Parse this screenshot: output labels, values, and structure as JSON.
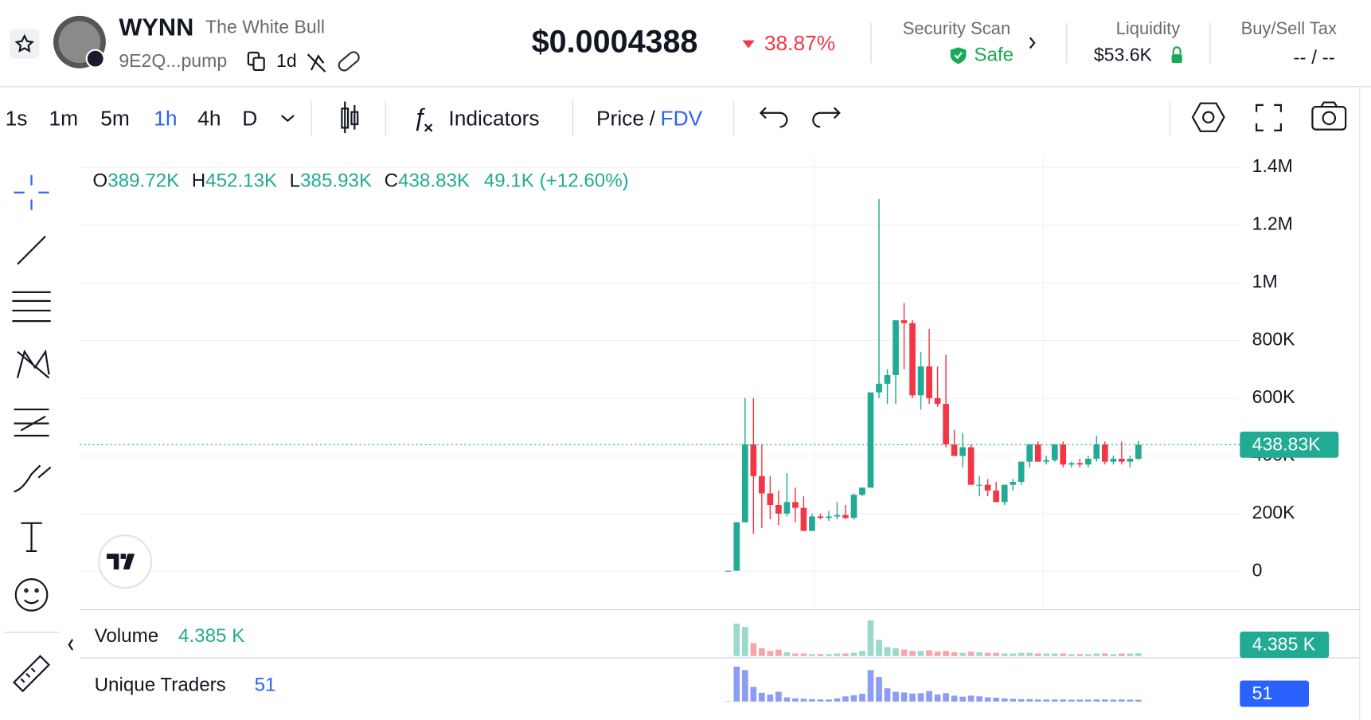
{
  "header": {
    "symbol": "WYNN",
    "name": "The White Bull",
    "address": "9E2Q...pump",
    "age": "1d",
    "price": "$0.0004388",
    "change": "38.87%",
    "security_label": "Security Scan",
    "security_value": "Safe",
    "liquidity_label": "Liquidity",
    "liquidity_value": "$53.6K",
    "tax_label": "Buy/Sell Tax",
    "tax_value": "-- / --"
  },
  "toolbar": {
    "intervals": [
      "1s",
      "1m",
      "5m",
      "1h",
      "4h",
      "D"
    ],
    "indicators": "Indicators",
    "price": "Price",
    "slash": "/",
    "fdv": "FDV"
  },
  "legend": {
    "o": "O",
    "o_value": "389.72K",
    "h": "H",
    "h_value": "452.13K",
    "l": "L",
    "l_value": "385.93K",
    "c": "C",
    "c_value": "438.83K",
    "change": "49.1K (+12.60%)"
  },
  "chart_data": {
    "type": "candlestick",
    "up_color": "#22ab94",
    "down_color": "#f23645",
    "grid": true,
    "ylim": [
      -127000,
      1440000
    ],
    "yticks": [
      {
        "value": 0,
        "label": "0"
      },
      {
        "value": 200000,
        "label": "200K"
      },
      {
        "value": 400000,
        "label": "400K"
      },
      {
        "value": 600000,
        "label": "600K"
      },
      {
        "value": 800000,
        "label": "800K"
      },
      {
        "value": 1000000,
        "label": "1M"
      },
      {
        "value": 1200000,
        "label": "1.2M"
      },
      {
        "value": 1400000,
        "label": "1.4M"
      }
    ],
    "last_price": {
      "value": 438830,
      "label": "438.83K"
    },
    "open": [
      0,
      2000,
      170000,
      440000,
      330000,
      270000,
      230000,
      200000,
      240000,
      220000,
      140000,
      190000,
      185000,
      190000,
      195000,
      185000,
      265000,
      290000,
      620000,
      650000,
      680000,
      870000,
      860000,
      610000,
      710000,
      600000,
      580000,
      440000,
      400000,
      430000,
      300000,
      300000,
      280000,
      240000,
      300000,
      310000,
      380000,
      440000,
      380000,
      385000,
      440000,
      370000,
      375000,
      370000,
      390000,
      440000,
      380000,
      390000,
      380000,
      389720
    ],
    "high": [
      2000,
      170000,
      600000,
      600000,
      440000,
      330000,
      280000,
      340000,
      290000,
      260000,
      200000,
      200000,
      210000,
      240000,
      230000,
      270000,
      290000,
      620000,
      1290000,
      700000,
      870000,
      930000,
      870000,
      760000,
      840000,
      710000,
      750000,
      490000,
      480000,
      440000,
      330000,
      320000,
      310000,
      300000,
      320000,
      380000,
      440000,
      450000,
      400000,
      440000,
      450000,
      380000,
      390000,
      400000,
      470000,
      450000,
      400000,
      450000,
      400000,
      452130
    ],
    "low": [
      0,
      2000,
      170000,
      130000,
      150000,
      180000,
      160000,
      190000,
      170000,
      140000,
      140000,
      180000,
      175000,
      180000,
      180000,
      180000,
      260000,
      290000,
      600000,
      580000,
      580000,
      700000,
      600000,
      560000,
      580000,
      570000,
      430000,
      400000,
      360000,
      300000,
      260000,
      260000,
      240000,
      230000,
      280000,
      300000,
      360000,
      380000,
      370000,
      380000,
      360000,
      360000,
      360000,
      360000,
      380000,
      370000,
      370000,
      370000,
      360000,
      385930
    ],
    "close": [
      2000,
      170000,
      440000,
      330000,
      270000,
      230000,
      200000,
      240000,
      220000,
      140000,
      190000,
      185000,
      190000,
      195000,
      185000,
      265000,
      290000,
      620000,
      650000,
      680000,
      870000,
      860000,
      610000,
      710000,
      600000,
      580000,
      440000,
      400000,
      430000,
      300000,
      300000,
      280000,
      240000,
      300000,
      310000,
      380000,
      440000,
      380000,
      385000,
      440000,
      370000,
      375000,
      370000,
      390000,
      440000,
      380000,
      390000,
      380000,
      390000,
      438830
    ],
    "volume": {
      "name": "Volume",
      "value_label": "4.385 K",
      "badge": "4.385 K",
      "ylim": [
        0,
        58000
      ],
      "values": [
        500,
        50000,
        45000,
        20000,
        12000,
        8000,
        10000,
        6000,
        4000,
        4000,
        3000,
        3000,
        3000,
        4000,
        4000,
        5000,
        8000,
        55000,
        25000,
        14000,
        12000,
        10000,
        8000,
        8000,
        9000,
        7000,
        8000,
        6000,
        5000,
        7000,
        6000,
        5000,
        5000,
        4000,
        4000,
        5000,
        5000,
        4000,
        4000,
        4000,
        4000,
        3000,
        3000,
        3000,
        4000,
        4000,
        3000,
        4000,
        4000,
        4385
      ]
    },
    "traders": {
      "name": "Unique Traders",
      "value_label": "51",
      "badge": "51",
      "color": "#8d9cf5",
      "ylim": [
        0,
        1100
      ],
      "values": [
        10,
        1000,
        900,
        420,
        250,
        200,
        280,
        120,
        90,
        80,
        70,
        60,
        60,
        90,
        150,
        180,
        220,
        900,
        700,
        380,
        280,
        260,
        230,
        240,
        300,
        200,
        240,
        170,
        140,
        170,
        150,
        120,
        110,
        90,
        80,
        70,
        70,
        60,
        60,
        60,
        60,
        55,
        55,
        55,
        60,
        60,
        55,
        60,
        55,
        51
      ]
    }
  }
}
